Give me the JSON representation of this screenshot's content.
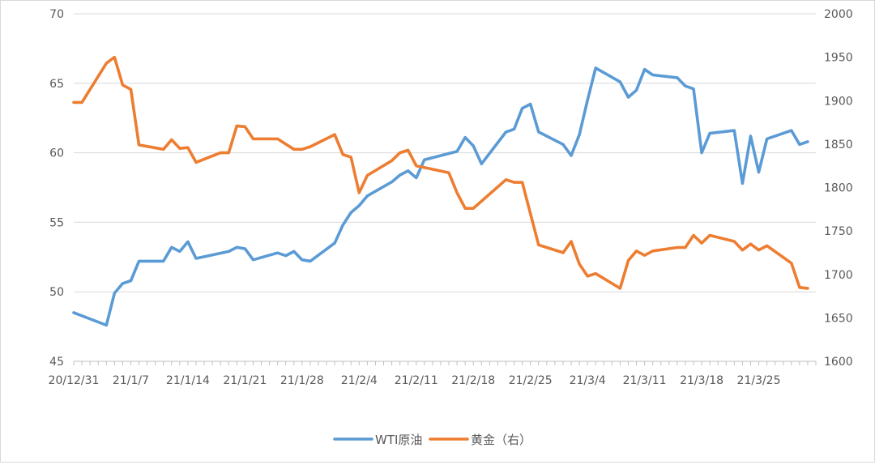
{
  "chart_data": {
    "type": "line",
    "title": "",
    "grid": true,
    "legend_position": "bottom",
    "x_axis": {
      "tick_labels": [
        "20/12/31",
        "21/1/7",
        "21/1/14",
        "21/1/21",
        "21/1/28",
        "21/2/4",
        "21/2/11",
        "21/2/18",
        "21/2/25",
        "21/3/4",
        "21/3/11",
        "21/3/18",
        "21/3/25"
      ],
      "range": [
        "20/12/31",
        "21/4/1"
      ]
    },
    "y_axis_left": {
      "range": [
        45,
        70
      ],
      "ticks": [
        45,
        50,
        55,
        60,
        65,
        70
      ]
    },
    "y_axis_right": {
      "range": [
        1600,
        2000
      ],
      "ticks": [
        1600,
        1650,
        1700,
        1750,
        1800,
        1850,
        1900,
        1950,
        2000
      ]
    },
    "series": [
      {
        "name": "WTI原油",
        "axis": "left",
        "color": "#5b9bd5",
        "points": [
          [
            "20/12/31",
            48.5
          ],
          [
            "21/1/4",
            47.6
          ],
          [
            "21/1/5",
            49.9
          ],
          [
            "21/1/6",
            50.6
          ],
          [
            "21/1/7",
            50.8
          ],
          [
            "21/1/8",
            52.2
          ],
          [
            "21/1/11",
            52.2
          ],
          [
            "21/1/12",
            53.2
          ],
          [
            "21/1/13",
            52.9
          ],
          [
            "21/1/14",
            53.6
          ],
          [
            "21/1/15",
            52.4
          ],
          [
            "21/1/19",
            52.9
          ],
          [
            "21/1/20",
            53.2
          ],
          [
            "21/1/21",
            53.1
          ],
          [
            "21/1/22",
            52.3
          ],
          [
            "21/1/25",
            52.8
          ],
          [
            "21/1/26",
            52.6
          ],
          [
            "21/1/27",
            52.9
          ],
          [
            "21/1/28",
            52.3
          ],
          [
            "21/1/29",
            52.2
          ],
          [
            "21/2/1",
            53.5
          ],
          [
            "21/2/2",
            54.8
          ],
          [
            "21/2/3",
            55.7
          ],
          [
            "21/2/4",
            56.2
          ],
          [
            "21/2/5",
            56.9
          ],
          [
            "21/2/8",
            57.9
          ],
          [
            "21/2/9",
            58.4
          ],
          [
            "21/2/10",
            58.7
          ],
          [
            "21/2/11",
            58.2
          ],
          [
            "21/2/12",
            59.5
          ],
          [
            "21/2/16",
            60.1
          ],
          [
            "21/2/17",
            61.1
          ],
          [
            "21/2/18",
            60.5
          ],
          [
            "21/2/19",
            59.2
          ],
          [
            "21/2/22",
            61.5
          ],
          [
            "21/2/23",
            61.7
          ],
          [
            "21/2/24",
            63.2
          ],
          [
            "21/2/25",
            63.5
          ],
          [
            "21/2/26",
            61.5
          ],
          [
            "21/3/1",
            60.6
          ],
          [
            "21/3/2",
            59.8
          ],
          [
            "21/3/3",
            61.3
          ],
          [
            "21/3/4",
            63.8
          ],
          [
            "21/3/5",
            66.1
          ],
          [
            "21/3/8",
            65.1
          ],
          [
            "21/3/9",
            64.0
          ],
          [
            "21/3/10",
            64.5
          ],
          [
            "21/3/11",
            66.0
          ],
          [
            "21/3/12",
            65.6
          ],
          [
            "21/3/15",
            65.4
          ],
          [
            "21/3/16",
            64.8
          ],
          [
            "21/3/17",
            64.6
          ],
          [
            "21/3/18",
            60.0
          ],
          [
            "21/3/19",
            61.4
          ],
          [
            "21/3/22",
            61.6
          ],
          [
            "21/3/23",
            57.8
          ],
          [
            "21/3/24",
            61.2
          ],
          [
            "21/3/25",
            58.6
          ],
          [
            "21/3/26",
            61.0
          ],
          [
            "21/3/29",
            61.6
          ],
          [
            "21/3/30",
            60.6
          ],
          [
            "21/3/31",
            60.8
          ]
        ]
      },
      {
        "name": "黄金（右）",
        "axis": "right",
        "color": "#ed7d31",
        "points": [
          [
            "20/12/31",
            1898
          ],
          [
            "21/1/1",
            1898
          ],
          [
            "21/1/4",
            1943
          ],
          [
            "21/1/5",
            1950
          ],
          [
            "21/1/6",
            1918
          ],
          [
            "21/1/7",
            1913
          ],
          [
            "21/1/8",
            1849
          ],
          [
            "21/1/11",
            1844
          ],
          [
            "21/1/12",
            1855
          ],
          [
            "21/1/13",
            1845
          ],
          [
            "21/1/14",
            1846
          ],
          [
            "21/1/15",
            1829
          ],
          [
            "21/1/18",
            1840
          ],
          [
            "21/1/19",
            1840
          ],
          [
            "21/1/20",
            1871
          ],
          [
            "21/1/21",
            1870
          ],
          [
            "21/1/22",
            1856
          ],
          [
            "21/1/25",
            1856
          ],
          [
            "21/1/26",
            1850
          ],
          [
            "21/1/27",
            1844
          ],
          [
            "21/1/28",
            1844
          ],
          [
            "21/1/29",
            1847
          ],
          [
            "21/2/1",
            1861
          ],
          [
            "21/2/2",
            1838
          ],
          [
            "21/2/3",
            1835
          ],
          [
            "21/2/4",
            1794
          ],
          [
            "21/2/5",
            1814
          ],
          [
            "21/2/8",
            1831
          ],
          [
            "21/2/9",
            1840
          ],
          [
            "21/2/10",
            1843
          ],
          [
            "21/2/11",
            1825
          ],
          [
            "21/2/12",
            1823
          ],
          [
            "21/2/15",
            1817
          ],
          [
            "21/2/16",
            1794
          ],
          [
            "21/2/17",
            1776
          ],
          [
            "21/2/18",
            1776
          ],
          [
            "21/2/22",
            1809
          ],
          [
            "21/2/23",
            1806
          ],
          [
            "21/2/24",
            1806
          ],
          [
            "21/2/26",
            1734
          ],
          [
            "21/3/1",
            1725
          ],
          [
            "21/3/2",
            1738
          ],
          [
            "21/3/3",
            1712
          ],
          [
            "21/3/4",
            1698
          ],
          [
            "21/3/5",
            1701
          ],
          [
            "21/3/8",
            1684
          ],
          [
            "21/3/9",
            1716
          ],
          [
            "21/3/10",
            1727
          ],
          [
            "21/3/11",
            1722
          ],
          [
            "21/3/12",
            1727
          ],
          [
            "21/3/15",
            1731
          ],
          [
            "21/3/16",
            1731
          ],
          [
            "21/3/17",
            1745
          ],
          [
            "21/3/18",
            1736
          ],
          [
            "21/3/19",
            1745
          ],
          [
            "21/3/22",
            1738
          ],
          [
            "21/3/23",
            1728
          ],
          [
            "21/3/24",
            1735
          ],
          [
            "21/3/25",
            1728
          ],
          [
            "21/3/26",
            1733
          ],
          [
            "21/3/29",
            1713
          ],
          [
            "21/3/30",
            1685
          ],
          [
            "21/3/31",
            1684
          ]
        ]
      }
    ]
  }
}
